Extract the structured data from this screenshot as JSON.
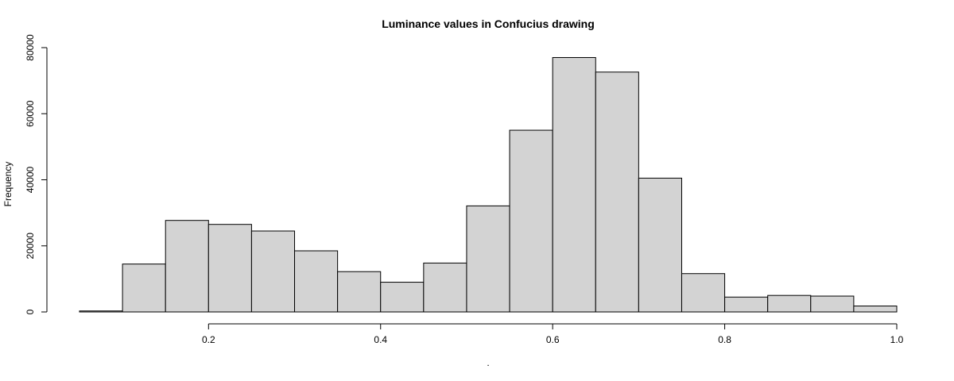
{
  "chart_data": {
    "type": "bar",
    "title": "Luminance values in Confucius drawing",
    "xlabel": ".",
    "ylabel": "Frequency",
    "xlim": [
      0.05,
      1.0
    ],
    "ylim": [
      0,
      80000
    ],
    "grid": false,
    "bins": [
      {
        "x0": 0.05,
        "x1": 0.1,
        "count": 300
      },
      {
        "x0": 0.1,
        "x1": 0.15,
        "count": 14500
      },
      {
        "x0": 0.15,
        "x1": 0.2,
        "count": 27700
      },
      {
        "x0": 0.2,
        "x1": 0.25,
        "count": 26500
      },
      {
        "x0": 0.25,
        "x1": 0.3,
        "count": 24500
      },
      {
        "x0": 0.3,
        "x1": 0.35,
        "count": 18500
      },
      {
        "x0": 0.35,
        "x1": 0.4,
        "count": 12200
      },
      {
        "x0": 0.4,
        "x1": 0.45,
        "count": 9000
      },
      {
        "x0": 0.45,
        "x1": 0.5,
        "count": 14800
      },
      {
        "x0": 0.5,
        "x1": 0.55,
        "count": 32100
      },
      {
        "x0": 0.55,
        "x1": 0.6,
        "count": 55000
      },
      {
        "x0": 0.6,
        "x1": 0.65,
        "count": 77000
      },
      {
        "x0": 0.65,
        "x1": 0.7,
        "count": 72600
      },
      {
        "x0": 0.7,
        "x1": 0.75,
        "count": 40500
      },
      {
        "x0": 0.75,
        "x1": 0.8,
        "count": 11600
      },
      {
        "x0": 0.8,
        "x1": 0.85,
        "count": 4500
      },
      {
        "x0": 0.85,
        "x1": 0.9,
        "count": 5000
      },
      {
        "x0": 0.9,
        "x1": 0.95,
        "count": 4800
      },
      {
        "x0": 0.95,
        "x1": 1.0,
        "count": 1800
      }
    ],
    "x_ticks": [
      {
        "value": 0.2,
        "label": "0.2"
      },
      {
        "value": 0.4,
        "label": "0.4"
      },
      {
        "value": 0.6,
        "label": "0.6"
      },
      {
        "value": 0.8,
        "label": "0.8"
      },
      {
        "value": 1.0,
        "label": "1.0"
      }
    ],
    "y_ticks": [
      {
        "value": 0,
        "label": "0"
      },
      {
        "value": 20000,
        "label": "20000"
      },
      {
        "value": 40000,
        "label": "40000"
      },
      {
        "value": 60000,
        "label": "60000"
      },
      {
        "value": 80000,
        "label": "80000"
      }
    ]
  }
}
